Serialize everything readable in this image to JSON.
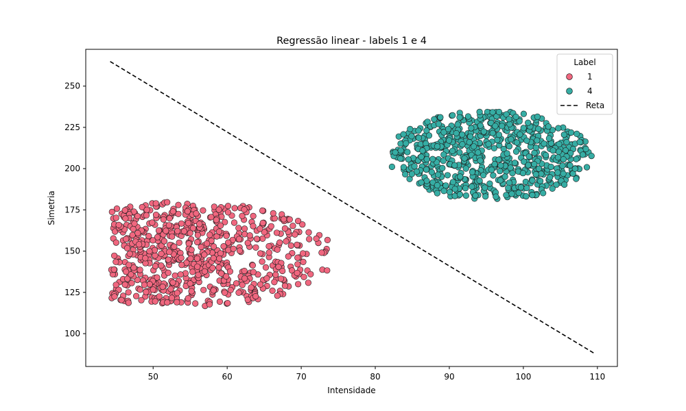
{
  "chart_data": {
    "type": "scatter",
    "title": "Regressão linear - labels 1 e 4",
    "xlabel": "Intensidade",
    "ylabel": "Simetria",
    "xlim": [
      40.9,
      112.7
    ],
    "ylim": [
      80.1,
      272.3
    ],
    "x_ticks": [
      50,
      60,
      70,
      80,
      90,
      100,
      110
    ],
    "y_ticks": [
      100,
      125,
      150,
      175,
      200,
      225,
      250
    ],
    "grid": false,
    "legend": {
      "title": "Label",
      "placement": "top-right",
      "entries": [
        {
          "label": "1",
          "kind": "marker",
          "color": "#f0677f"
        },
        {
          "label": "4",
          "kind": "marker",
          "color": "#36ada4"
        },
        {
          "label": "Reta",
          "kind": "dashed-line",
          "color": "#000000"
        }
      ]
    },
    "series": [
      {
        "name": "1",
        "color": "#f0677f",
        "approx_count": 700,
        "cluster_center": [
          54,
          148
        ],
        "x_range": [
          44.3,
          74.6
        ],
        "y_range": [
          116,
          180
        ],
        "density": "denser toward the left edge"
      },
      {
        "name": "4",
        "color": "#36ada4",
        "approx_count": 700,
        "cluster_center": [
          95.5,
          209
        ],
        "x_range": [
          81.9,
          109.3
        ],
        "y_range": [
          181,
          235
        ],
        "density": "roughly uniform ellipse"
      },
      {
        "name": "Reta",
        "color": "#000000",
        "style": "dashed",
        "x": [
          44.2,
          109.6
        ],
        "y": [
          264.9,
          88.0
        ]
      }
    ]
  }
}
